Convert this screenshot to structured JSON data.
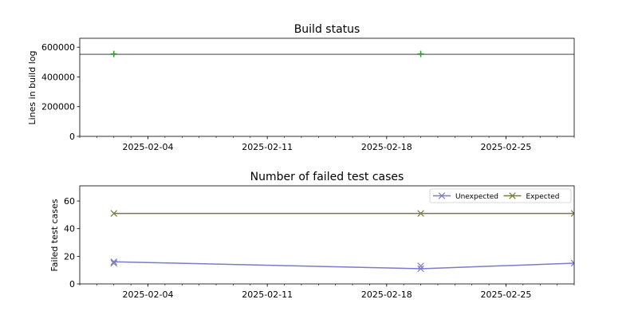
{
  "chart_data": [
    {
      "type": "line",
      "title": "Build status",
      "xlabel": "",
      "ylabel": "Lines in build log",
      "xlim": [
        "2025-01-31",
        "2025-03-01"
      ],
      "ylim": [
        0,
        660000
      ],
      "yticks": [
        0,
        200000,
        400000,
        600000
      ],
      "xticks": [
        "2025-02-04",
        "2025-02-11",
        "2025-02-18",
        "2025-02-25"
      ],
      "grid": false,
      "legend": "none",
      "series": [
        {
          "color": "#7f7f7f",
          "marker": "none",
          "x": [
            "2025-01-31",
            "2025-03-01"
          ],
          "y": [
            552000,
            552000
          ]
        },
        {
          "color": "#2ca02c",
          "marker": "plus",
          "line": false,
          "x": [
            "2025-02-02",
            "2025-02-20"
          ],
          "y": [
            555000,
            555000
          ]
        }
      ]
    },
    {
      "type": "line",
      "title": "Number of failed test cases",
      "xlabel": "",
      "ylabel": "Failed test cases",
      "xlim": [
        "2025-01-31",
        "2025-03-01"
      ],
      "ylim": [
        0,
        71
      ],
      "yticks": [
        0,
        20,
        40,
        60
      ],
      "xticks": [
        "2025-02-04",
        "2025-02-11",
        "2025-02-18",
        "2025-02-25"
      ],
      "grid": false,
      "legend": "top-right",
      "series": [
        {
          "name": "Unexpected",
          "color": "#7b7bc8",
          "marker": "x",
          "x": [
            "2025-02-02",
            "2025-02-20",
            "2025-03-01"
          ],
          "y": [
            16,
            11,
            15
          ]
        },
        {
          "color": "#7b7bc8",
          "marker": "x",
          "line": false,
          "x": [
            "2025-02-02",
            "2025-02-20"
          ],
          "y": [
            15,
            13
          ]
        },
        {
          "name": "Expected",
          "color": "#7a7a3a",
          "marker": "x",
          "x": [
            "2025-02-02",
            "2025-02-20",
            "2025-03-01"
          ],
          "y": [
            51,
            51,
            51
          ]
        }
      ]
    }
  ]
}
